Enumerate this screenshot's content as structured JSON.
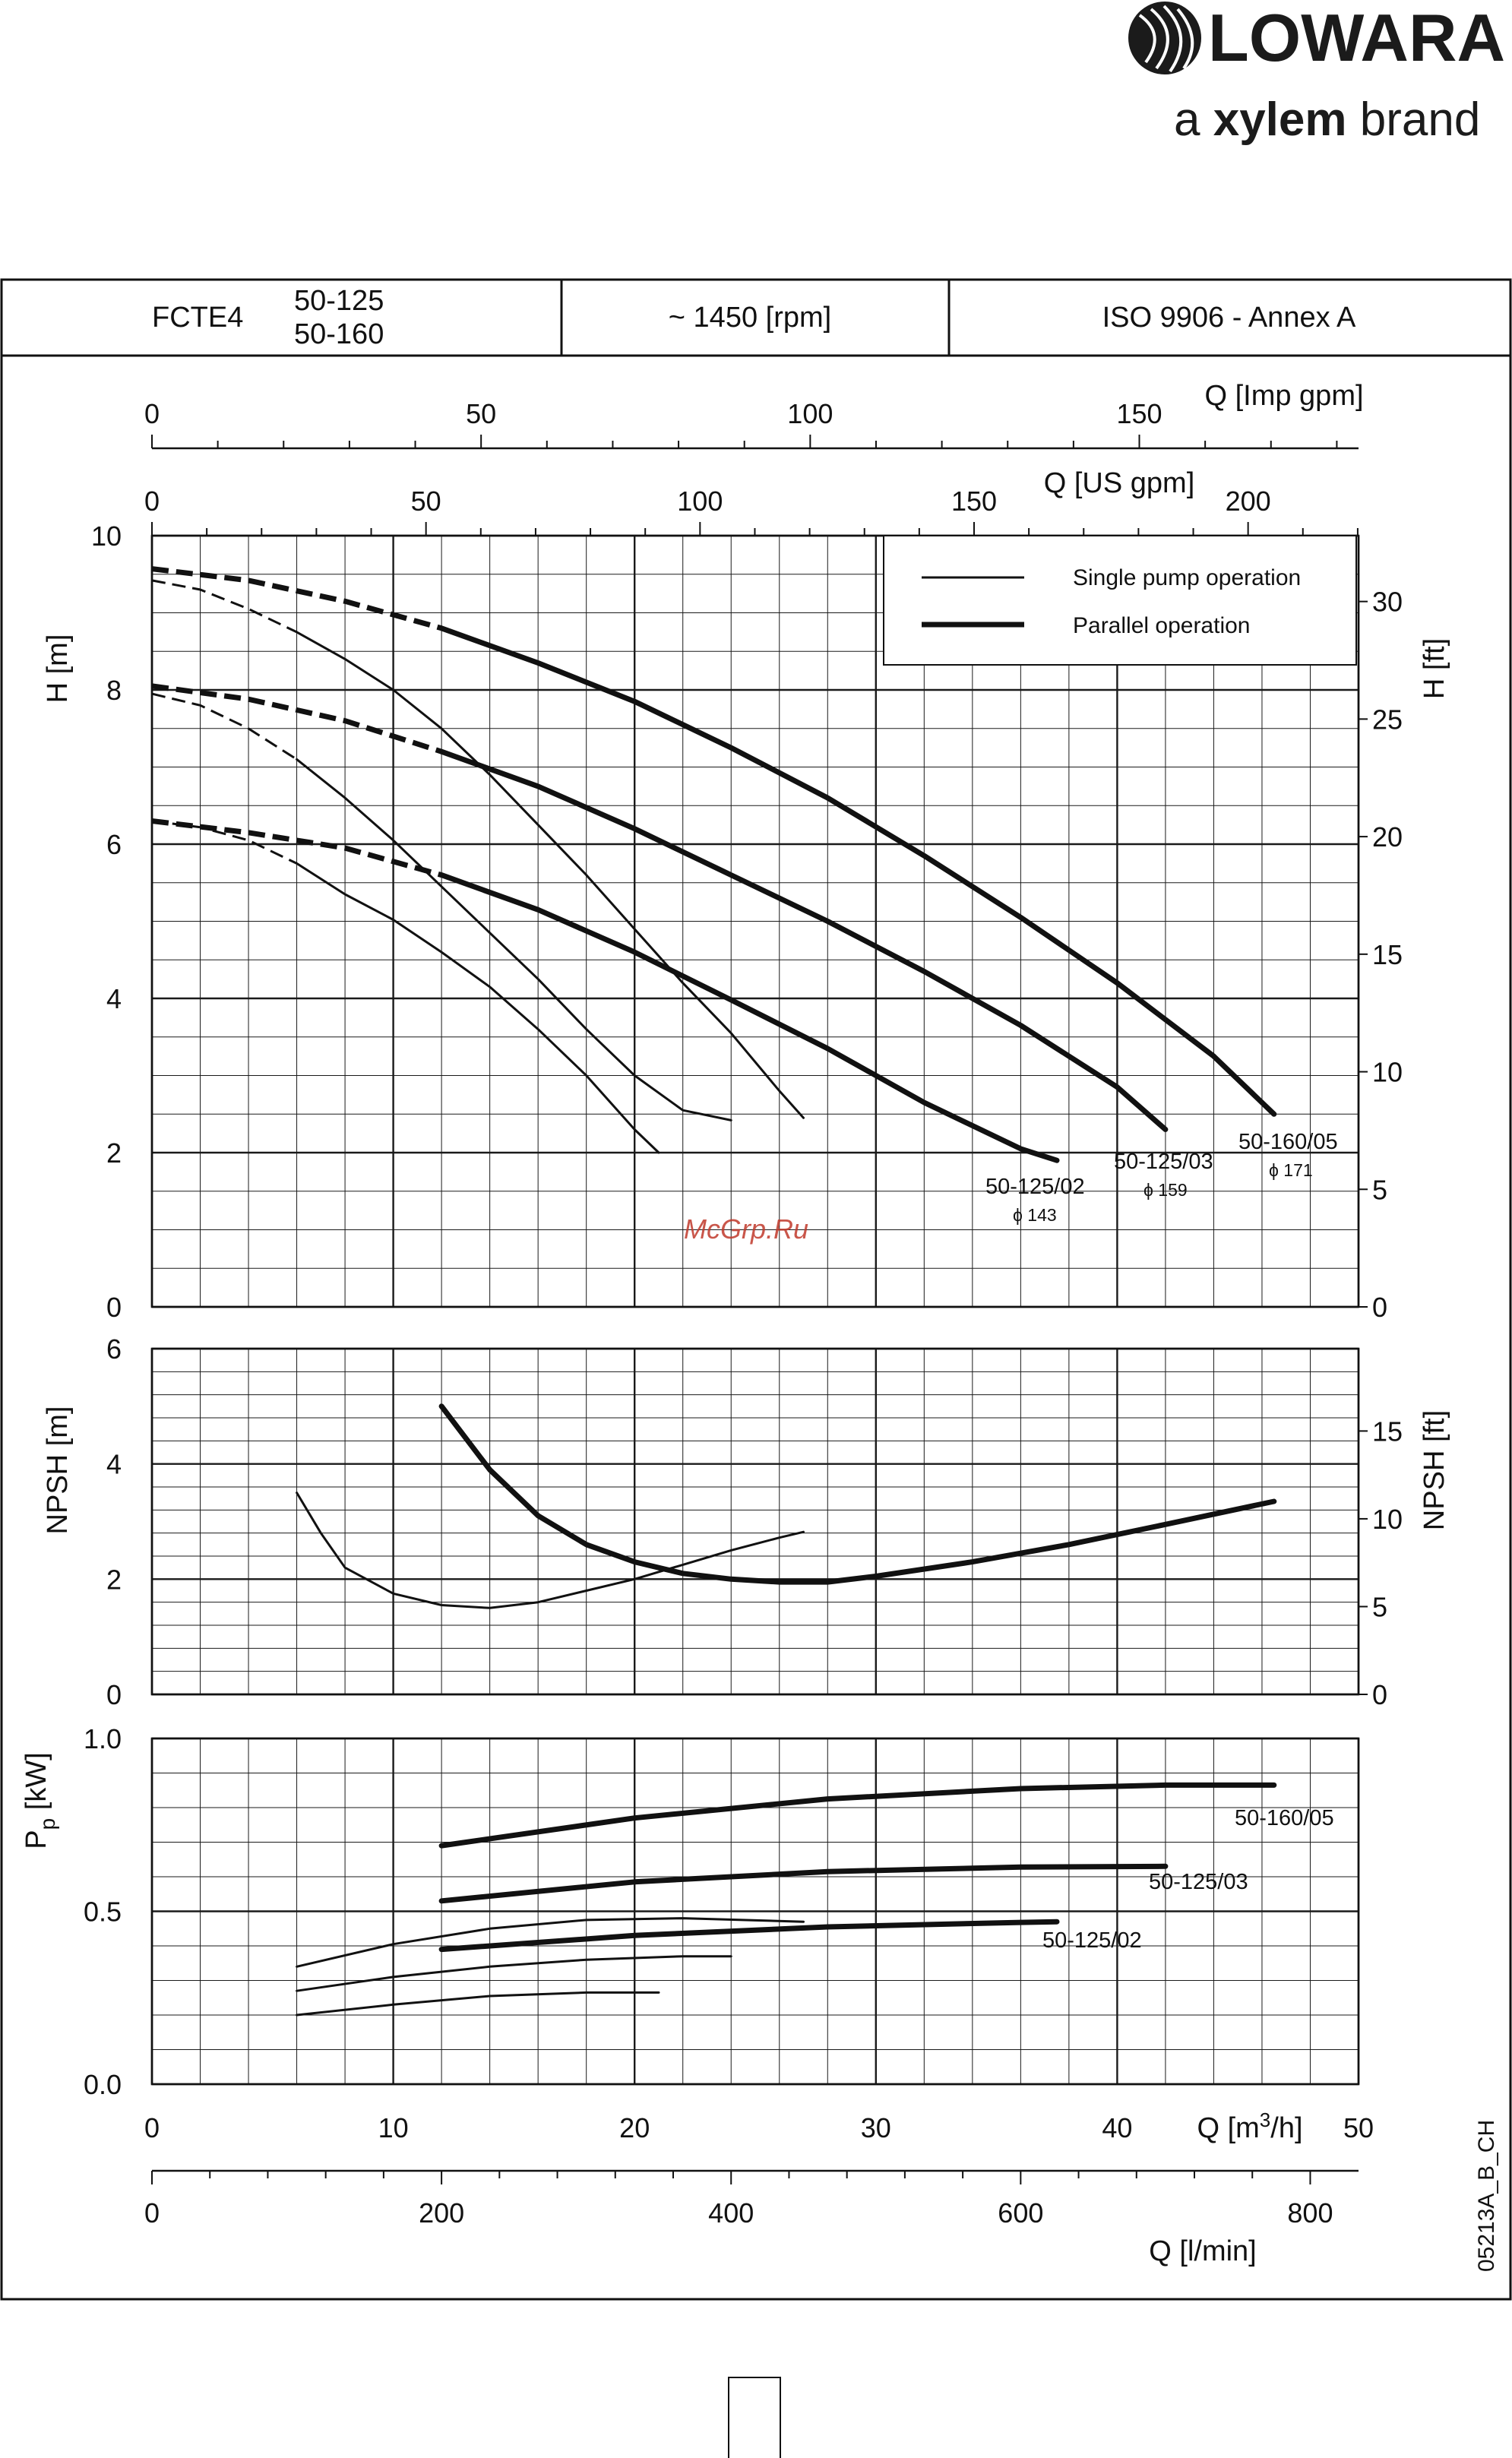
{
  "brand": {
    "name": "LOWARA",
    "tagline_pre": "a ",
    "tagline_bold": "xylem",
    "tagline_post": " brand"
  },
  "header": {
    "series": "FCTE4",
    "models": [
      "50-125",
      "50-160"
    ],
    "speed": "~ 1450 [rpm]",
    "standard": "ISO 9906 - Annex A"
  },
  "watermark": "McGrp.Ru",
  "figure_code": "05213A_B_CH",
  "legend": {
    "single": "Single pump operation",
    "parallel": "Parallel operation"
  },
  "colors": {
    "line": "#111111",
    "grid": "#1a1a1a",
    "watermark": "#c0392b"
  },
  "chart_data": [
    {
      "type": "line",
      "panel": "head",
      "xlabel": "Q [m3/h]",
      "ylabel": "H [m]",
      "y2label": "H [ft]",
      "xlim": [
        0,
        50
      ],
      "ylim": [
        0,
        10
      ],
      "y2lim": [
        0,
        32.8
      ],
      "x_ticks": [
        0,
        10,
        20,
        30,
        40,
        50
      ],
      "y_ticks": [
        0,
        2,
        4,
        6,
        8,
        10
      ],
      "y2_ticks": [
        0,
        5,
        10,
        15,
        20,
        25,
        30
      ],
      "top_axes": [
        {
          "label": "Q [Imp gpm]",
          "ticks": [
            0,
            50,
            100,
            150
          ],
          "factor": 3.666
        },
        {
          "label": "Q [US gpm]",
          "ticks": [
            0,
            50,
            100,
            150,
            200
          ],
          "factor": 4.403
        }
      ],
      "legend_position": "top-right",
      "grid": true,
      "series": [
        {
          "name": "50-125/02",
          "diameter": "ϕ 143",
          "mode": "single",
          "x": [
            0,
            2,
            4,
            6,
            8,
            10,
            12,
            14,
            16,
            18,
            20,
            21
          ],
          "y": [
            6.3,
            6.22,
            6.05,
            5.75,
            5.35,
            5.02,
            4.6,
            4.15,
            3.6,
            3.0,
            2.3,
            2.0
          ]
        },
        {
          "name": "50-125/03",
          "diameter": "ϕ 159",
          "mode": "single",
          "x": [
            0,
            2,
            4,
            6,
            8,
            10,
            12,
            14,
            16,
            18,
            20,
            22,
            24
          ],
          "y": [
            7.95,
            7.8,
            7.5,
            7.1,
            6.6,
            6.05,
            5.45,
            4.85,
            4.25,
            3.6,
            3.0,
            2.55,
            2.42
          ]
        },
        {
          "name": "50-160/05",
          "diameter": "ϕ 171",
          "mode": "single",
          "x": [
            0,
            2,
            4,
            6,
            8,
            10,
            12,
            14,
            16,
            18,
            20,
            22,
            24,
            26,
            27
          ],
          "y": [
            9.42,
            9.3,
            9.05,
            8.75,
            8.4,
            8.0,
            7.5,
            6.9,
            6.25,
            5.6,
            4.9,
            4.2,
            3.55,
            2.8,
            2.45
          ]
        },
        {
          "name": "50-125/02",
          "diameter": "ϕ 143",
          "mode": "parallel",
          "x": [
            0,
            4,
            8,
            12,
            16,
            20,
            24,
            28,
            32,
            36,
            37.5
          ],
          "y": [
            6.3,
            6.15,
            5.95,
            5.6,
            5.15,
            4.6,
            3.98,
            3.35,
            2.65,
            2.05,
            1.9
          ]
        },
        {
          "name": "50-125/03",
          "diameter": "ϕ 159",
          "mode": "parallel",
          "x": [
            0,
            4,
            8,
            12,
            16,
            20,
            24,
            28,
            32,
            36,
            40,
            42
          ],
          "y": [
            8.05,
            7.88,
            7.6,
            7.2,
            6.75,
            6.2,
            5.6,
            5.0,
            4.35,
            3.65,
            2.85,
            2.3
          ]
        },
        {
          "name": "50-160/05",
          "diameter": "ϕ 171",
          "mode": "parallel",
          "x": [
            0,
            4,
            8,
            12,
            16,
            20,
            24,
            28,
            32,
            36,
            40,
            44,
            46.5
          ],
          "y": [
            9.57,
            9.42,
            9.15,
            8.8,
            8.35,
            7.85,
            7.25,
            6.6,
            5.85,
            5.05,
            4.2,
            3.25,
            2.5
          ]
        }
      ]
    },
    {
      "type": "line",
      "panel": "npsh",
      "xlabel": "Q [m3/h]",
      "ylabel": "NPSH [m]",
      "y2label": "NPSH [ft]",
      "xlim": [
        0,
        50
      ],
      "ylim": [
        0,
        6
      ],
      "y2lim": [
        0,
        19.69
      ],
      "y_ticks": [
        0,
        2,
        4,
        6
      ],
      "y2_ticks": [
        0,
        5,
        10,
        15
      ],
      "grid": true,
      "series": [
        {
          "mode": "single",
          "x": [
            6,
            7,
            8,
            10,
            12,
            14,
            16,
            18,
            20,
            22,
            24,
            26,
            27
          ],
          "y": [
            3.5,
            2.8,
            2.2,
            1.75,
            1.55,
            1.5,
            1.6,
            1.8,
            2.0,
            2.25,
            2.5,
            2.72,
            2.82
          ]
        },
        {
          "mode": "parallel",
          "x": [
            12,
            14,
            16,
            18,
            20,
            22,
            24,
            26,
            28,
            30,
            34,
            38,
            42,
            46.5
          ],
          "y": [
            5.0,
            3.9,
            3.1,
            2.6,
            2.3,
            2.1,
            2.0,
            1.95,
            1.95,
            2.05,
            2.3,
            2.6,
            2.95,
            3.35
          ]
        }
      ]
    },
    {
      "type": "line",
      "panel": "power",
      "xlabel": "Q [m3/h]",
      "ylabel": "Pp [kW]",
      "xlim": [
        0,
        50
      ],
      "ylim": [
        0,
        1.0
      ],
      "y_ticks": [
        0.0,
        0.5,
        1.0
      ],
      "x_ticks": [
        0,
        10,
        20,
        30,
        40,
        50
      ],
      "bottom_axis": {
        "label": "Q [l/min]",
        "ticks": [
          0,
          200,
          400,
          600,
          800
        ],
        "factor": 16.667
      },
      "grid": true,
      "series": [
        {
          "name": "50-125/02",
          "mode": "single",
          "x": [
            6,
            10,
            14,
            18,
            21
          ],
          "y": [
            0.2,
            0.23,
            0.255,
            0.265,
            0.265
          ]
        },
        {
          "name": "50-125/03",
          "mode": "single",
          "x": [
            6,
            10,
            14,
            18,
            22,
            24
          ],
          "y": [
            0.27,
            0.31,
            0.34,
            0.36,
            0.37,
            0.37
          ]
        },
        {
          "name": "50-160/05",
          "mode": "single",
          "x": [
            6,
            10,
            14,
            18,
            22,
            27
          ],
          "y": [
            0.34,
            0.405,
            0.45,
            0.475,
            0.48,
            0.47
          ]
        },
        {
          "name": "50-125/02",
          "mode": "parallel",
          "x": [
            12,
            20,
            28,
            36,
            37.5
          ],
          "y": [
            0.39,
            0.43,
            0.455,
            0.468,
            0.47
          ]
        },
        {
          "name": "50-125/03",
          "mode": "parallel",
          "x": [
            12,
            20,
            28,
            36,
            42
          ],
          "y": [
            0.53,
            0.585,
            0.615,
            0.628,
            0.63
          ]
        },
        {
          "name": "50-160/05",
          "mode": "parallel",
          "x": [
            12,
            20,
            28,
            36,
            42,
            46.5
          ],
          "y": [
            0.69,
            0.77,
            0.825,
            0.855,
            0.865,
            0.865
          ]
        }
      ]
    }
  ]
}
